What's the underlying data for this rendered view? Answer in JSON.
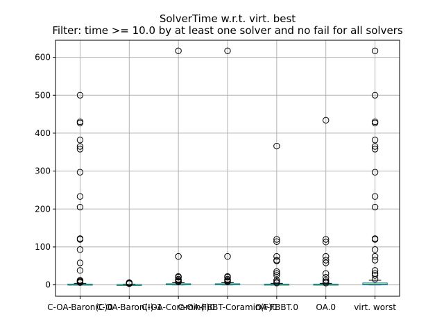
{
  "chart_data": {
    "type": "box",
    "title": "SolverTime w.r.t. virt. best",
    "subtitle": "Filter: time >= 10.0 by at least one solver and no fail for all solvers",
    "xlabel": "",
    "ylabel": "",
    "ylim": [
      -30,
      645
    ],
    "yticks": [
      0,
      100,
      200,
      300,
      400,
      500,
      600
    ],
    "grid": true,
    "categories": [
      "C-OA-Baron(C)0",
      "C-OA-Baron(I)-1",
      "C-OA-Coramin(I)0",
      "C-OA-FBBT-Coramin(F)0",
      "OA-FBBT.0",
      "OA.0",
      "virt. worst"
    ],
    "boxes": [
      {
        "q1": 0,
        "median": 1,
        "q3": 2,
        "whisker_low": 0,
        "whisker_high": 4,
        "outliers": [
          500,
          430,
          427,
          382,
          365,
          358,
          297,
          233,
          205,
          122,
          120,
          93,
          58,
          38,
          12,
          10,
          8,
          6
        ]
      },
      {
        "q1": 0,
        "median": 0.5,
        "q3": 1,
        "whisker_low": 0,
        "whisker_high": 2,
        "outliers": [
          6,
          5,
          4,
          3
        ]
      },
      {
        "q1": 0,
        "median": 1,
        "q3": 3,
        "whisker_low": 0,
        "whisker_high": 6,
        "outliers": [
          617,
          75,
          22,
          20,
          15,
          12,
          10,
          8
        ]
      },
      {
        "q1": 0,
        "median": 1,
        "q3": 3,
        "whisker_low": 0,
        "whisker_high": 6,
        "outliers": [
          617,
          75,
          22,
          20,
          15,
          12,
          10,
          8
        ]
      },
      {
        "q1": 0,
        "median": 0.5,
        "q3": 2,
        "whisker_low": 0,
        "whisker_high": 4,
        "outliers": [
          366,
          120,
          114,
          75,
          65,
          63,
          35,
          30,
          25,
          12,
          8,
          5
        ]
      },
      {
        "q1": 0,
        "median": 0.5,
        "q3": 2,
        "whisker_low": 0,
        "whisker_high": 4,
        "outliers": [
          434,
          120,
          113,
          75,
          65,
          58,
          30,
          20,
          12,
          8,
          5
        ]
      },
      {
        "q1": 0,
        "median": 2,
        "q3": 5,
        "whisker_low": 0,
        "whisker_high": 12,
        "outliers": [
          617,
          500,
          430,
          427,
          382,
          365,
          358,
          297,
          233,
          205,
          122,
          120,
          93,
          75,
          65,
          38,
          30,
          25,
          15
        ]
      }
    ]
  }
}
